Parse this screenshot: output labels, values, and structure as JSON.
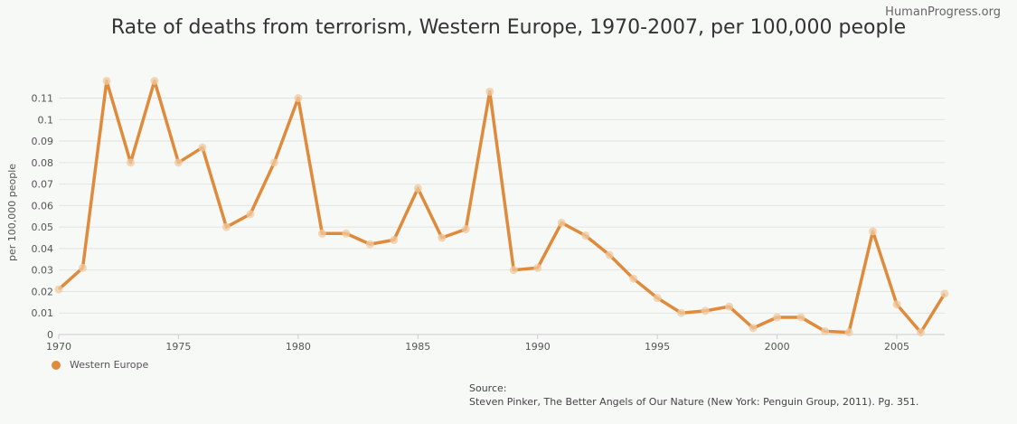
{
  "brand": "HumanProgress.org",
  "source_label": "Source:",
  "source_text": "Steven Pinker, The Better Angels of Our Nature (New York: Penguin Group, 2011). Pg. 351.",
  "chart_data": {
    "type": "line",
    "title": "Rate of deaths from terrorism, Western Europe, 1970-2007, per 100,000 people",
    "xlabel": "",
    "ylabel": "per 100,000 people",
    "xlim": [
      1970,
      2007
    ],
    "ylim": [
      0,
      0.11
    ],
    "x_ticks": [
      1970,
      1975,
      1980,
      1985,
      1990,
      1995,
      2000,
      2005
    ],
    "y_ticks": [
      "0",
      "0.01",
      "0.02",
      "0.03",
      "0.04",
      "0.05",
      "0.06",
      "0.07",
      "0.08",
      "0.09",
      "0.1",
      "0.11"
    ],
    "grid": true,
    "legend_position": "bottom-left",
    "color": "#e08a3c",
    "x": [
      1970,
      1971,
      1972,
      1973,
      1974,
      1975,
      1976,
      1977,
      1978,
      1979,
      1980,
      1981,
      1982,
      1983,
      1984,
      1985,
      1986,
      1987,
      1988,
      1989,
      1990,
      1991,
      1992,
      1993,
      1994,
      1995,
      1996,
      1997,
      1998,
      1999,
      2000,
      2001,
      2002,
      2003,
      2004,
      2005,
      2006,
      2007
    ],
    "series": [
      {
        "name": "Western Europe",
        "values": [
          0.021,
          0.031,
          0.118,
          0.08,
          0.118,
          0.08,
          0.087,
          0.05,
          0.056,
          0.08,
          0.11,
          0.047,
          0.047,
          0.042,
          0.044,
          0.068,
          0.045,
          0.049,
          0.113,
          0.03,
          0.031,
          0.052,
          0.046,
          0.037,
          0.026,
          0.017,
          0.01,
          0.011,
          0.013,
          0.003,
          0.008,
          0.008,
          0.0015,
          0.001,
          0.048,
          0.014,
          0.001,
          0.019
        ]
      }
    ]
  }
}
